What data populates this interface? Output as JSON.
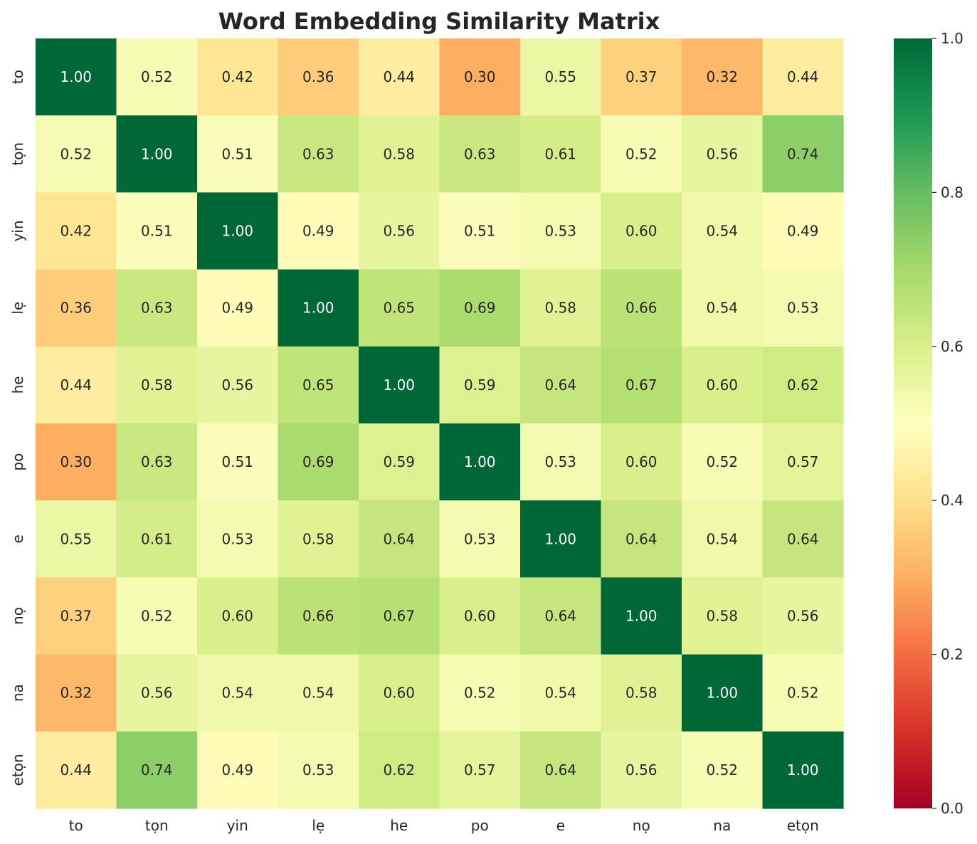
{
  "chart_data": {
    "type": "heatmap",
    "title": "Word Embedding Similarity Matrix",
    "xlabel": "",
    "ylabel": "",
    "labels": [
      "to",
      "tọn",
      "yin",
      "lẹ",
      "he",
      "po",
      "e",
      "nọ",
      "na",
      "etọn"
    ],
    "matrix": [
      [
        1.0,
        0.52,
        0.42,
        0.36,
        0.44,
        0.3,
        0.55,
        0.37,
        0.32,
        0.44
      ],
      [
        0.52,
        1.0,
        0.51,
        0.63,
        0.58,
        0.63,
        0.61,
        0.52,
        0.56,
        0.74
      ],
      [
        0.42,
        0.51,
        1.0,
        0.49,
        0.56,
        0.51,
        0.53,
        0.6,
        0.54,
        0.49
      ],
      [
        0.36,
        0.63,
        0.49,
        1.0,
        0.65,
        0.69,
        0.58,
        0.66,
        0.54,
        0.53
      ],
      [
        0.44,
        0.58,
        0.56,
        0.65,
        1.0,
        0.59,
        0.64,
        0.67,
        0.6,
        0.62
      ],
      [
        0.3,
        0.63,
        0.51,
        0.69,
        0.59,
        1.0,
        0.53,
        0.6,
        0.52,
        0.57
      ],
      [
        0.55,
        0.61,
        0.53,
        0.58,
        0.64,
        0.53,
        1.0,
        0.64,
        0.54,
        0.64
      ],
      [
        0.37,
        0.52,
        0.6,
        0.66,
        0.67,
        0.6,
        0.64,
        1.0,
        0.58,
        0.56
      ],
      [
        0.32,
        0.56,
        0.54,
        0.54,
        0.6,
        0.52,
        0.54,
        0.58,
        1.0,
        0.52
      ],
      [
        0.44,
        0.74,
        0.49,
        0.53,
        0.62,
        0.57,
        0.64,
        0.56,
        0.52,
        1.0
      ]
    ],
    "value_format": "0.00",
    "colormap": "RdYlGn",
    "vmin": 0.0,
    "vmax": 1.0,
    "colorbar": {
      "ticks": [
        "0.0",
        "0.2",
        "0.4",
        "0.6",
        "0.8",
        "1.0"
      ],
      "placement": "right"
    },
    "grid": false,
    "colors": {
      "text_dark": "#262626",
      "text_light": "#ffffff",
      "background": "#ffffff"
    }
  }
}
